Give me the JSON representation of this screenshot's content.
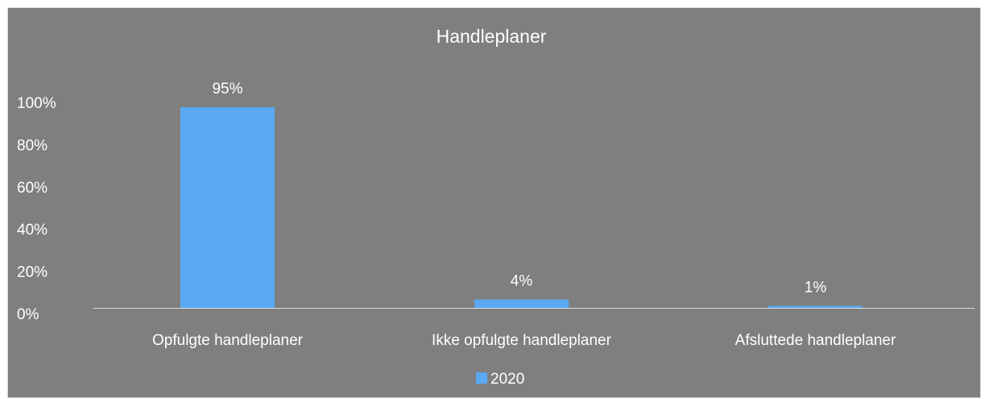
{
  "chart_data": {
    "type": "bar",
    "title": "Handleplaner",
    "categories": [
      "Opfulgte handleplaner",
      "Ikke opfulgte handleplaner",
      "Afsluttede handleplaner"
    ],
    "series": [
      {
        "name": "2020",
        "values": [
          95,
          4,
          1
        ],
        "data_labels": [
          "95%",
          "4%",
          "1%"
        ],
        "color": "#5aa9f2"
      }
    ],
    "ylim": [
      0,
      100
    ],
    "yticks": [
      0,
      20,
      40,
      60,
      80,
      100
    ],
    "ytick_labels": [
      "0%",
      "20%",
      "40%",
      "60%",
      "80%",
      "100%"
    ],
    "grid": false,
    "legend_position": "bottom",
    "background_color": "#7f7f7f",
    "axis_color": "#d9d9d9",
    "text_color": "#ffffff"
  }
}
